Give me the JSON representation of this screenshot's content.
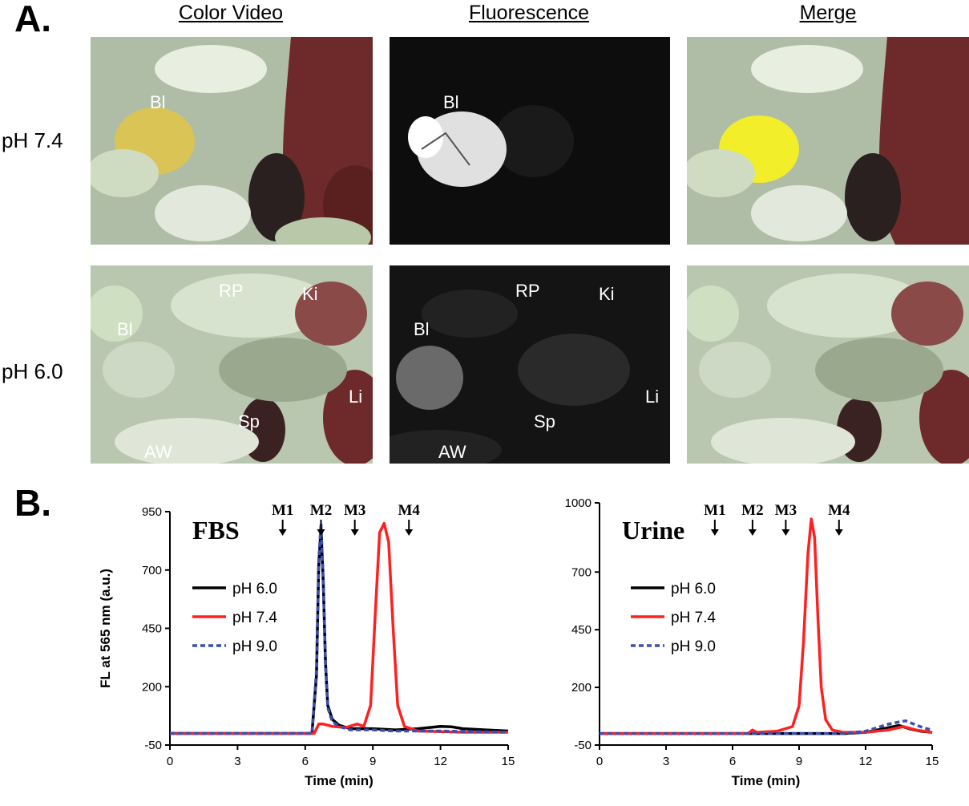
{
  "panels": {
    "a_label": "A.",
    "b_label": "B."
  },
  "columns": [
    "Color Video",
    "Fluorescence",
    "Merge"
  ],
  "rows": [
    "pH 7.4",
    "pH 6.0"
  ],
  "organ_labels": {
    "row1_color": [
      "Bl"
    ],
    "row1_fluor": [
      "Bl"
    ],
    "row2_color": [
      "RP",
      "Ki",
      "Bl",
      "Li",
      "Sp",
      "AW"
    ],
    "row2_fluor": [
      "RP",
      "Ki",
      "Bl",
      "Li",
      "Sp",
      "AW"
    ]
  },
  "colors": {
    "ph60": "#000000",
    "ph74": "#ff2020",
    "ph90": "#3a4fb0",
    "tissue": "#cfe0c2",
    "liver": "#6e2a2a"
  },
  "chart_data": [
    {
      "type": "line",
      "title": "FBS",
      "xlabel": "Time (min)",
      "ylabel": "FL at 565 nm (a.u.)",
      "xlim": [
        0,
        15
      ],
      "ylim": [
        -50,
        950
      ],
      "xticks": [
        0,
        3,
        6,
        9,
        12,
        15
      ],
      "yticks": [
        -50,
        200,
        450,
        700,
        950
      ],
      "markers": [
        {
          "label": "M1",
          "x": 5.0
        },
        {
          "label": "M2",
          "x": 6.7
        },
        {
          "label": "M3",
          "x": 8.2
        },
        {
          "label": "M4",
          "x": 10.6
        }
      ],
      "series": [
        {
          "name": "pH 6.0",
          "style": "solid",
          "color": "#000000",
          "x": [
            0,
            6.3,
            6.5,
            6.6,
            6.7,
            6.8,
            6.9,
            7.0,
            7.2,
            7.5,
            8,
            9,
            10,
            11,
            12,
            12.5,
            13,
            14,
            15
          ],
          "y": [
            0,
            0,
            250,
            720,
            880,
            650,
            300,
            120,
            60,
            35,
            20,
            20,
            15,
            20,
            30,
            28,
            20,
            15,
            10
          ]
        },
        {
          "name": "pH 7.4",
          "style": "solid",
          "color": "#ff2020",
          "x": [
            0,
            6.4,
            6.6,
            6.8,
            7.2,
            7.8,
            8.3,
            8.6,
            8.9,
            9.1,
            9.3,
            9.5,
            9.7,
            9.9,
            10.1,
            10.4,
            11,
            13,
            15
          ],
          "y": [
            0,
            0,
            40,
            40,
            30,
            25,
            40,
            30,
            120,
            500,
            860,
            900,
            820,
            450,
            120,
            30,
            10,
            5,
            5
          ]
        },
        {
          "name": "pH 9.0",
          "style": "dashed",
          "color": "#3a4fb0",
          "x": [
            0,
            6.3,
            6.5,
            6.6,
            6.7,
            6.8,
            6.9,
            7.0,
            7.2,
            7.5,
            8,
            9,
            10,
            12,
            15
          ],
          "y": [
            0,
            0,
            270,
            740,
            900,
            660,
            300,
            110,
            50,
            30,
            15,
            15,
            10,
            10,
            5
          ]
        }
      ]
    },
    {
      "type": "line",
      "title": "Urine",
      "xlabel": "Time (min)",
      "ylabel": "",
      "xlim": [
        0,
        15
      ],
      "ylim": [
        -50,
        1000
      ],
      "xticks": [
        0,
        3,
        6,
        9,
        12,
        15
      ],
      "yticks": [
        -50,
        200,
        450,
        700,
        1000
      ],
      "markers": [
        {
          "label": "M1",
          "x": 5.2
        },
        {
          "label": "M2",
          "x": 6.9
        },
        {
          "label": "M3",
          "x": 8.4
        },
        {
          "label": "M4",
          "x": 10.8
        }
      ],
      "series": [
        {
          "name": "pH 6.0",
          "style": "solid",
          "color": "#000000",
          "x": [
            0,
            11,
            12,
            12.5,
            13,
            13.5,
            14,
            14.5,
            15
          ],
          "y": [
            0,
            0,
            5,
            15,
            25,
            35,
            20,
            10,
            5
          ]
        },
        {
          "name": "pH 7.4",
          "style": "solid",
          "color": "#ff2020",
          "x": [
            0,
            6.7,
            6.9,
            7.1,
            8,
            8.7,
            9.0,
            9.2,
            9.4,
            9.55,
            9.7,
            9.85,
            10.0,
            10.2,
            10.5,
            11,
            12,
            13,
            13.7,
            14.3,
            15
          ],
          "y": [
            0,
            0,
            15,
            5,
            10,
            30,
            120,
            400,
            780,
            930,
            850,
            500,
            200,
            60,
            15,
            5,
            5,
            15,
            30,
            15,
            5
          ]
        },
        {
          "name": "pH 9.0",
          "style": "dashed",
          "color": "#3a4fb0",
          "x": [
            0,
            11,
            12,
            12.5,
            13,
            13.5,
            13.8,
            14.2,
            14.6,
            15
          ],
          "y": [
            0,
            0,
            10,
            25,
            40,
            50,
            55,
            40,
            25,
            15
          ]
        }
      ]
    }
  ]
}
